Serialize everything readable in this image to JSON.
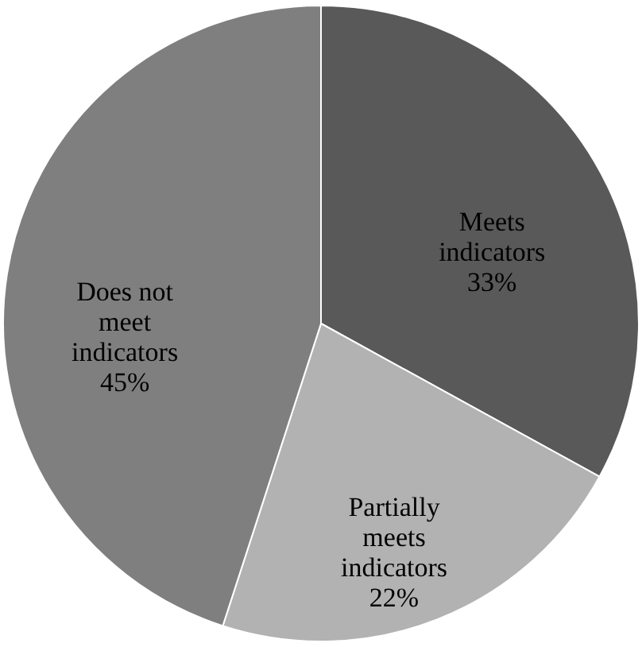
{
  "chart_data": {
    "type": "pie",
    "categories": [
      "Meets indicators",
      "Partially meets indicators",
      "Does not meet indicators"
    ],
    "values": [
      33,
      22,
      45
    ],
    "colors": [
      "#595959",
      "#b2b2b2",
      "#7f7f7f"
    ],
    "value_labels": [
      "33%",
      "22%",
      "45%"
    ]
  }
}
